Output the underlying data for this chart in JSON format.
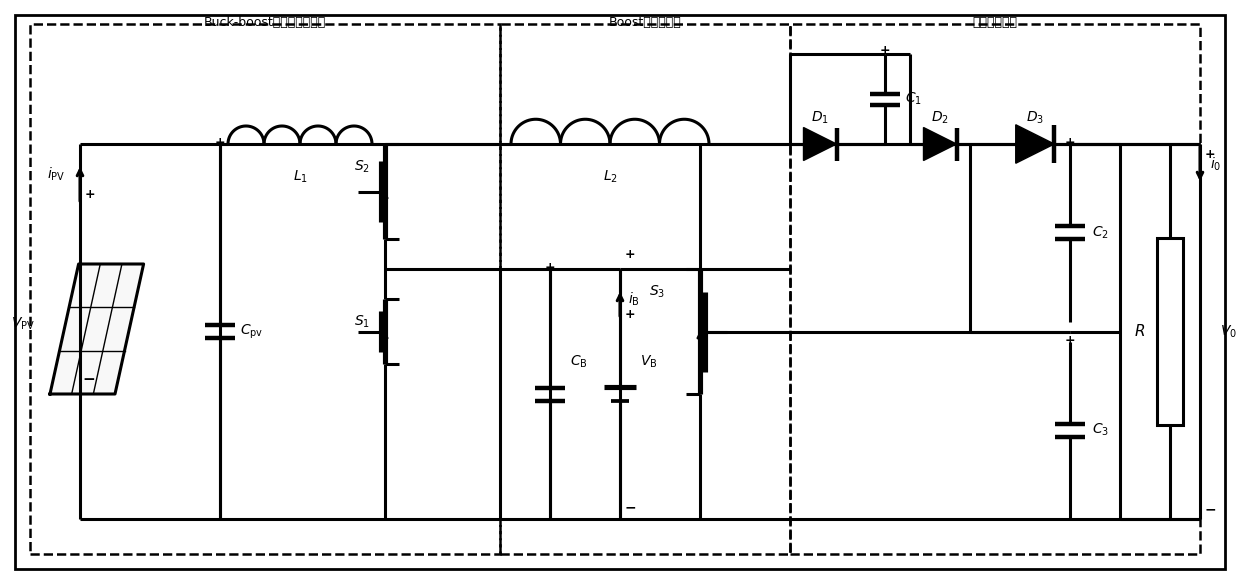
{
  "bg_color": "#ffffff",
  "lc": "#000000",
  "lw": 2.2,
  "box1_label": "Buck-boost双向直流变换器",
  "box2_label": "Boost直流变换器",
  "box3_label": "开关电容单元"
}
